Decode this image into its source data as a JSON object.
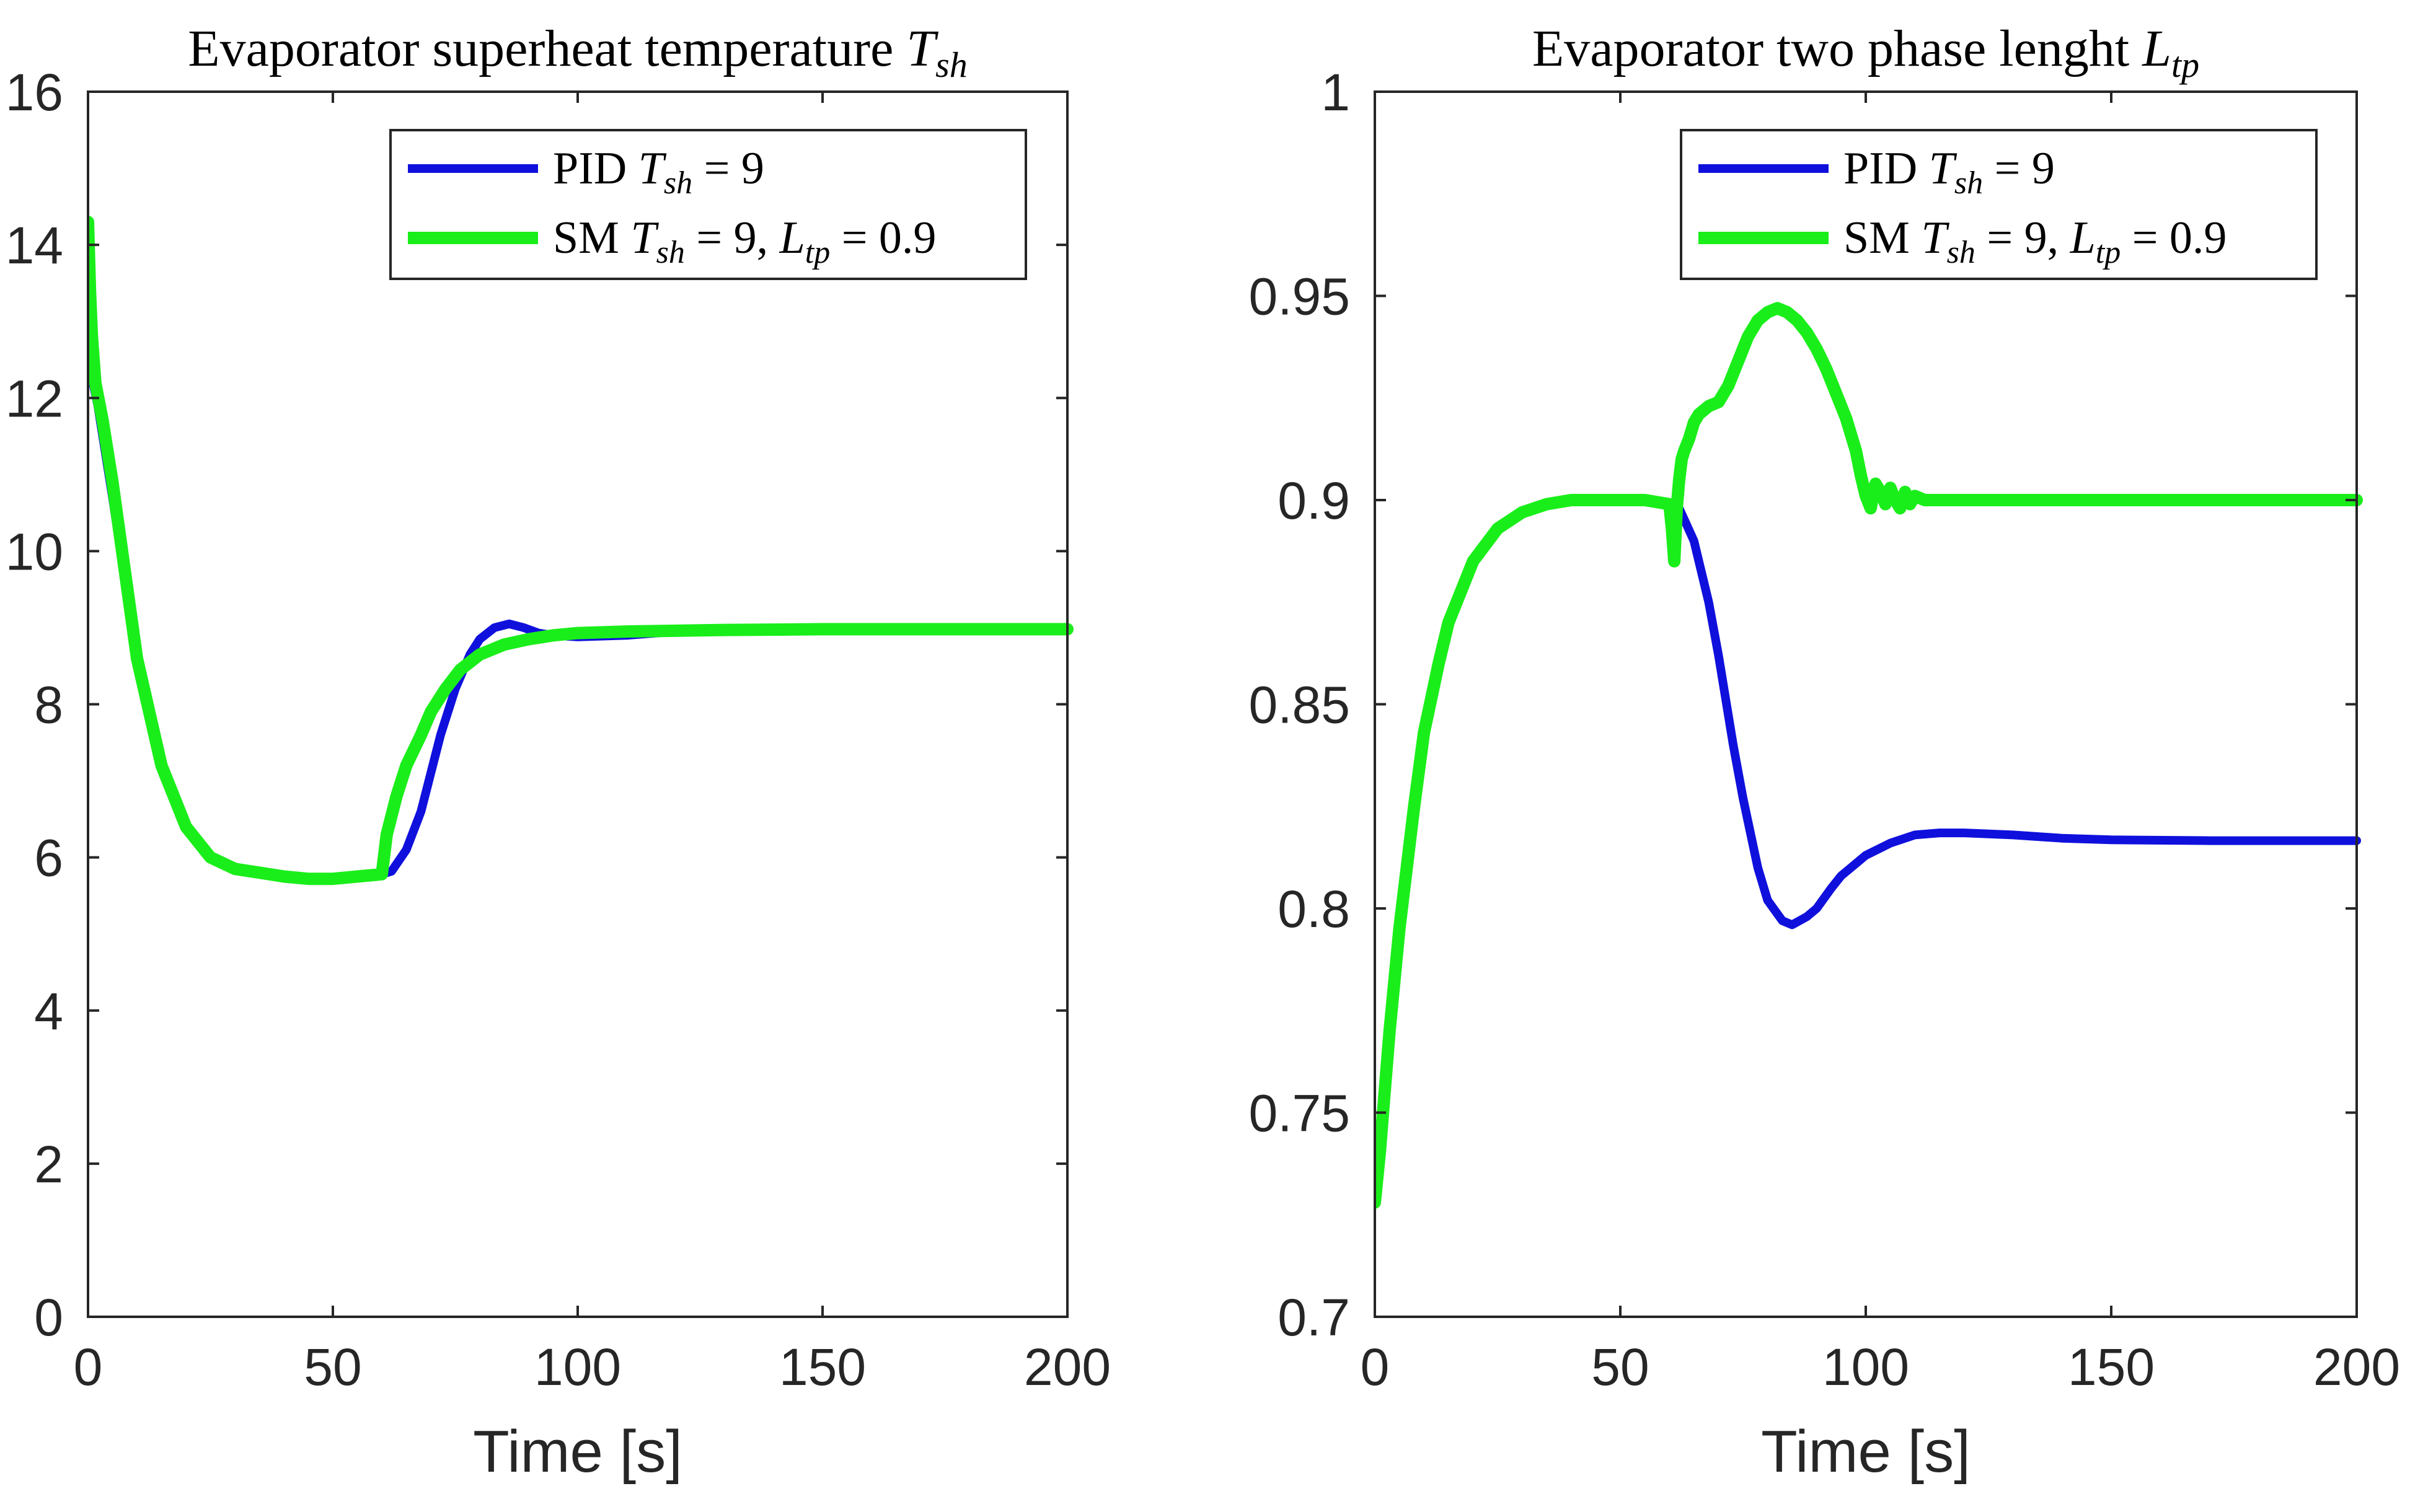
{
  "colors": {
    "pid": "#1010dd",
    "sm": "#1aee1a"
  },
  "chart_data": [
    {
      "type": "line",
      "title_text": "Evaporator superheat temperature",
      "title_var": "T",
      "title_sub": "sh",
      "xlabel": "Time [s]",
      "ylabel": "",
      "xlim": [
        0,
        200
      ],
      "ylim": [
        0,
        16
      ],
      "xticks": [
        0,
        50,
        100,
        150,
        200
      ],
      "xtick_labels": [
        "0",
        "50",
        "100",
        "150",
        "200"
      ],
      "yticks": [
        0,
        2,
        4,
        6,
        8,
        10,
        12,
        14,
        16
      ],
      "ytick_labels": [
        "0",
        "2",
        "4",
        "6",
        "8",
        "10",
        "12",
        "14",
        "16"
      ],
      "legend_position": "top-right",
      "grid": false,
      "legend": [
        {
          "name": "PID",
          "parts": [
            {
              "t": "PID "
            },
            {
              "t": "T",
              "m": 1
            },
            {
              "t": "sh",
              "m": 1,
              "sub": 1
            },
            {
              "t": " = 9"
            }
          ]
        },
        {
          "name": "SM",
          "parts": [
            {
              "t": "SM "
            },
            {
              "t": "T",
              "m": 1
            },
            {
              "t": "sh",
              "m": 1,
              "sub": 1
            },
            {
              "t": " = 9,  "
            },
            {
              "t": "L",
              "m": 1
            },
            {
              "t": "tp",
              "m": 1,
              "sub": 1
            },
            {
              "t": " = 0.9"
            }
          ]
        }
      ],
      "series": [
        {
          "name": "PID T_sh = 9",
          "color": "#1010dd",
          "x": [
            0,
            2,
            5,
            10,
            15,
            20,
            25,
            30,
            35,
            40,
            45,
            50,
            55,
            60,
            62,
            65,
            68,
            70,
            72,
            75,
            78,
            80,
            83,
            86,
            89,
            92,
            95,
            100,
            110,
            120,
            130,
            150,
            170,
            200
          ],
          "y": [
            12.5,
            11.9,
            10.7,
            8.6,
            7.2,
            6.4,
            6.0,
            5.85,
            5.8,
            5.75,
            5.72,
            5.72,
            5.75,
            5.78,
            5.82,
            6.1,
            6.6,
            7.1,
            7.6,
            8.2,
            8.65,
            8.85,
            9.0,
            9.05,
            9.0,
            8.93,
            8.9,
            8.88,
            8.9,
            8.95,
            8.97,
            8.98,
            8.98,
            8.98
          ]
        },
        {
          "name": "SM T_sh = 9, L_tp = 0.9",
          "color": "#1aee1a",
          "x": [
            0,
            0.4,
            0.8,
            1.5,
            3,
            5,
            10,
            15,
            20,
            25,
            30,
            35,
            40,
            45,
            50,
            55,
            60,
            61,
            63,
            65,
            68,
            70,
            73,
            76,
            80,
            85,
            90,
            95,
            100,
            110,
            120,
            130,
            150,
            170,
            200
          ],
          "y": [
            14.3,
            13.4,
            12.8,
            12.2,
            11.7,
            10.9,
            8.6,
            7.2,
            6.4,
            6.0,
            5.85,
            5.8,
            5.75,
            5.72,
            5.72,
            5.75,
            5.78,
            6.3,
            6.8,
            7.2,
            7.6,
            7.9,
            8.2,
            8.45,
            8.65,
            8.78,
            8.85,
            8.9,
            8.93,
            8.95,
            8.96,
            8.97,
            8.98,
            8.98,
            8.98
          ]
        }
      ]
    },
    {
      "type": "line",
      "title_text": "Evaporator two phase lenght",
      "title_var": "L",
      "title_sub": "tp",
      "xlabel": "Time [s]",
      "ylabel": "",
      "xlim": [
        0,
        200
      ],
      "ylim": [
        0.7,
        1
      ],
      "xticks": [
        0,
        50,
        100,
        150,
        200
      ],
      "xtick_labels": [
        "0",
        "50",
        "100",
        "150",
        "200"
      ],
      "yticks": [
        0.7,
        0.75,
        0.8,
        0.85,
        0.9,
        0.95,
        1
      ],
      "ytick_labels": [
        "0.7",
        "0.75",
        "0.8",
        "0.85",
        "0.9",
        "0.95",
        "1"
      ],
      "legend_position": "top-right",
      "grid": false,
      "legend": [
        {
          "name": "PID",
          "parts": [
            {
              "t": "PID "
            },
            {
              "t": "T",
              "m": 1
            },
            {
              "t": "sh",
              "m": 1,
              "sub": 1
            },
            {
              "t": " = 9"
            }
          ]
        },
        {
          "name": "SM",
          "parts": [
            {
              "t": "SM "
            },
            {
              "t": "T",
              "m": 1
            },
            {
              "t": "sh",
              "m": 1,
              "sub": 1
            },
            {
              "t": " = 9,  "
            },
            {
              "t": "L",
              "m": 1
            },
            {
              "t": "tp",
              "m": 1,
              "sub": 1
            },
            {
              "t": " = 0.9"
            }
          ]
        }
      ],
      "series": [
        {
          "name": "PID T_sh = 9",
          "color": "#1010dd",
          "x": [
            0,
            1,
            2,
            3,
            5,
            8,
            10,
            13,
            15,
            20,
            25,
            30,
            35,
            40,
            45,
            50,
            55,
            60,
            62,
            65,
            68,
            70,
            73,
            75,
            78,
            80,
            83,
            85,
            88,
            90,
            93,
            95,
            100,
            105,
            110,
            115,
            120,
            130,
            140,
            150,
            170,
            200
          ],
          "y": [
            0.728,
            0.74,
            0.755,
            0.77,
            0.795,
            0.825,
            0.843,
            0.86,
            0.87,
            0.885,
            0.893,
            0.897,
            0.899,
            0.9,
            0.9,
            0.9,
            0.9,
            0.899,
            0.898,
            0.89,
            0.875,
            0.862,
            0.84,
            0.827,
            0.81,
            0.802,
            0.797,
            0.796,
            0.798,
            0.8,
            0.805,
            0.808,
            0.813,
            0.816,
            0.818,
            0.8185,
            0.8185,
            0.818,
            0.8172,
            0.8168,
            0.8166,
            0.8166
          ]
        },
        {
          "name": "SM T_sh = 9, L_tp = 0.9",
          "color": "#1aee1a",
          "x": [
            0,
            1,
            2,
            3,
            5,
            8,
            10,
            13,
            15,
            20,
            25,
            30,
            35,
            40,
            45,
            50,
            55,
            60,
            60.5,
            61,
            61.5,
            62,
            62.5,
            63,
            64,
            65,
            66,
            68,
            70,
            72,
            74,
            76,
            78,
            80,
            82,
            84,
            86,
            88,
            90,
            92,
            94,
            96,
            98,
            99,
            100,
            101,
            102,
            103,
            104,
            105,
            106,
            107,
            108,
            109,
            110,
            112,
            114,
            116,
            120,
            130,
            140,
            150,
            170,
            200
          ],
          "y": [
            0.728,
            0.74,
            0.755,
            0.77,
            0.795,
            0.825,
            0.843,
            0.86,
            0.87,
            0.885,
            0.893,
            0.897,
            0.899,
            0.9,
            0.9,
            0.9,
            0.9,
            0.899,
            0.893,
            0.885,
            0.898,
            0.905,
            0.91,
            0.912,
            0.915,
            0.919,
            0.921,
            0.923,
            0.924,
            0.928,
            0.934,
            0.94,
            0.944,
            0.946,
            0.947,
            0.946,
            0.944,
            0.941,
            0.937,
            0.932,
            0.926,
            0.92,
            0.912,
            0.906,
            0.901,
            0.898,
            0.904,
            0.902,
            0.899,
            0.903,
            0.9,
            0.898,
            0.902,
            0.899,
            0.901,
            0.9,
            0.9,
            0.9,
            0.9,
            0.9,
            0.9,
            0.9,
            0.9,
            0.9
          ]
        }
      ]
    }
  ]
}
